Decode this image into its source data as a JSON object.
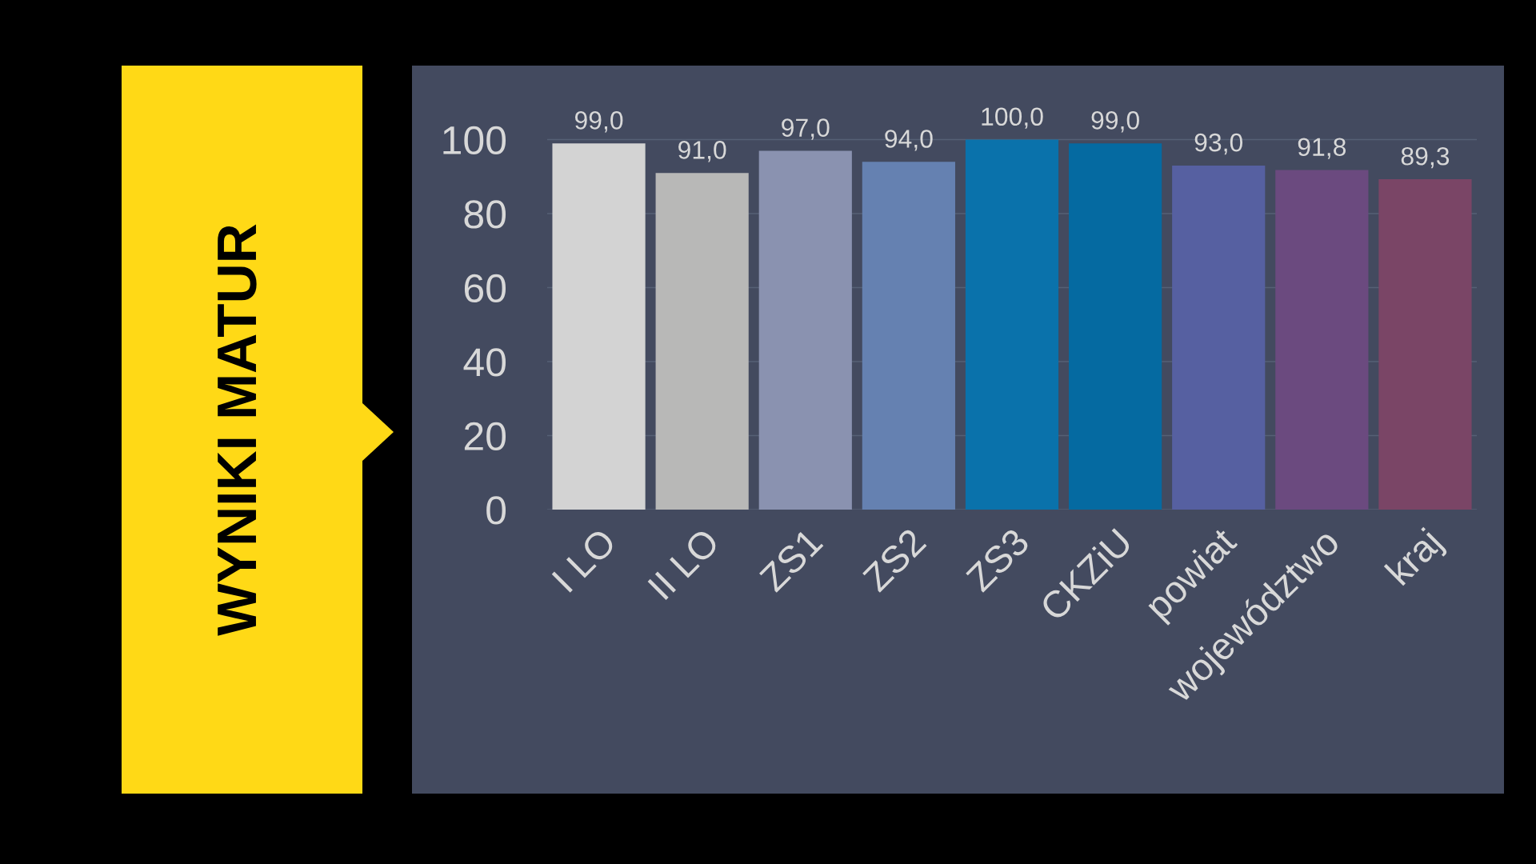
{
  "chart_data": {
    "type": "bar",
    "title": "WYNIKI MATUR",
    "categories": [
      "I LO",
      "II LO",
      "ZS1",
      "ZS2",
      "ZS3",
      "CKZiU",
      "powiat",
      "województwo",
      "kraj"
    ],
    "values": [
      99.0,
      91.0,
      97.0,
      94.0,
      100.0,
      99.0,
      93.0,
      91.8,
      89.3
    ],
    "colors": [
      "#d3d3d3",
      "#b8b8b7",
      "#8a92b0",
      "#6581b1",
      "#0a72ab",
      "#056aa1",
      "#5660a1",
      "#6b4a7f",
      "#7a4566"
    ],
    "value_labels": [
      "99,0",
      "91,0",
      "97,0",
      "94,0",
      "100,0",
      "99,0",
      "93,0",
      "91,8",
      "89,3"
    ],
    "ylim": [
      0,
      120
    ],
    "yticks": [
      0,
      20,
      40,
      60,
      80,
      100
    ],
    "grid": "y"
  }
}
